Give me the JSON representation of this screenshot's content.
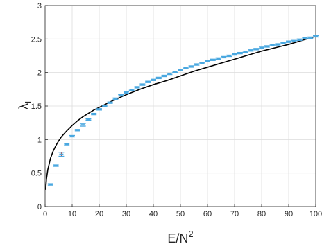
{
  "chart_data": {
    "type": "scatter",
    "title": "",
    "xlabel": {
      "base": "E/N",
      "sup": "2"
    },
    "ylabel": {
      "base": "λ",
      "sub": "L"
    },
    "xlim": [
      0,
      100
    ],
    "ylim": [
      0,
      3
    ],
    "xticks": [
      0,
      10,
      20,
      30,
      40,
      50,
      60,
      70,
      80,
      90,
      100
    ],
    "yticks": [
      0,
      0.5,
      1,
      1.5,
      2,
      2.5,
      3
    ],
    "xtick_labels": [
      "0",
      "10",
      "20",
      "30",
      "40",
      "50",
      "60",
      "70",
      "80",
      "90",
      "100"
    ],
    "ytick_labels": [
      "0",
      "0.5",
      "1",
      "1.5",
      "2",
      "2.5",
      "3"
    ],
    "grid": true,
    "series": [
      {
        "kind": "errorbar-markers",
        "color": "#4aa8e0",
        "error_color": "#c0392b",
        "x": [
          2,
          4,
          6,
          8,
          10,
          12,
          14,
          16,
          18,
          20,
          22,
          24,
          26,
          28,
          30,
          32,
          34,
          36,
          38,
          40,
          42,
          44,
          46,
          48,
          50,
          52,
          54,
          56,
          58,
          60,
          62,
          64,
          66,
          68,
          70,
          72,
          74,
          76,
          78,
          80,
          82,
          84,
          86,
          88,
          90,
          92,
          94,
          96,
          98,
          100
        ],
        "y": [
          0.33,
          0.61,
          0.78,
          0.93,
          1.05,
          1.14,
          1.22,
          1.3,
          1.38,
          1.45,
          1.5,
          1.55,
          1.61,
          1.66,
          1.7,
          1.74,
          1.78,
          1.82,
          1.86,
          1.89,
          1.92,
          1.95,
          1.98,
          2.01,
          2.04,
          2.07,
          2.09,
          2.12,
          2.14,
          2.17,
          2.19,
          2.21,
          2.23,
          2.25,
          2.27,
          2.29,
          2.31,
          2.33,
          2.35,
          2.37,
          2.39,
          2.41,
          2.42,
          2.44,
          2.46,
          2.47,
          2.49,
          2.51,
          2.52,
          2.54
        ],
        "err": [
          0.01,
          0.01,
          0.03,
          0.01,
          0.01,
          0.01,
          0.02,
          0.01,
          0.01,
          0.01,
          0.01,
          0.01,
          0.01,
          0.01,
          0.01,
          0.01,
          0.01,
          0.01,
          0.01,
          0.01,
          0.01,
          0.01,
          0.01,
          0.01,
          0.01,
          0.01,
          0.01,
          0.01,
          0.01,
          0.01,
          0.01,
          0.01,
          0.01,
          0.01,
          0.01,
          0.01,
          0.01,
          0.01,
          0.01,
          0.01,
          0.01,
          0.01,
          0.01,
          0.01,
          0.01,
          0.01,
          0.01,
          0.01,
          0.01,
          0.01
        ]
      },
      {
        "kind": "line",
        "color": "#000000",
        "x": [
          0.2,
          0.5,
          1,
          2,
          3,
          4,
          5,
          6,
          8,
          10,
          12,
          14,
          16,
          18,
          20,
          25,
          30,
          35,
          40,
          45,
          50,
          55,
          60,
          65,
          70,
          75,
          80,
          85,
          90,
          95,
          100
        ],
        "y": [
          0.25,
          0.41,
          0.55,
          0.72,
          0.83,
          0.91,
          0.98,
          1.04,
          1.13,
          1.21,
          1.28,
          1.34,
          1.39,
          1.44,
          1.48,
          1.58,
          1.67,
          1.75,
          1.82,
          1.88,
          1.95,
          2.02,
          2.08,
          2.14,
          2.2,
          2.26,
          2.32,
          2.37,
          2.42,
          2.48,
          2.54
        ]
      }
    ]
  }
}
